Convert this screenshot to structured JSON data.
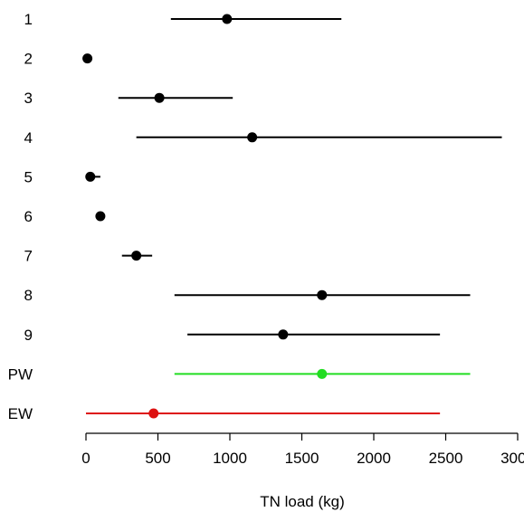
{
  "chart_data": {
    "type": "scatter",
    "title": "",
    "xlabel": "TN load (kg)",
    "ylabel": "",
    "xlim": [
      0,
      3000
    ],
    "x_ticks": [
      {
        "value": 0,
        "label": "0"
      },
      {
        "value": 500,
        "label": "500"
      },
      {
        "value": 1000,
        "label": "1000"
      },
      {
        "value": 1500,
        "label": "1500"
      },
      {
        "value": 2000,
        "label": "2000"
      },
      {
        "value": 2500,
        "label": "2500"
      },
      {
        "value": 3000,
        "label": "3000"
      }
    ],
    "grid": false,
    "legend": "none",
    "categories": [
      "1",
      "2",
      "3",
      "4",
      "5",
      "6",
      "7",
      "8",
      "9",
      "PW",
      "EW"
    ],
    "points": [
      {
        "category": "1",
        "value": 980,
        "low": 590,
        "high": 1775,
        "color": "#000000"
      },
      {
        "category": "2",
        "value": 10,
        "low": null,
        "high": null,
        "color": "#000000"
      },
      {
        "category": "3",
        "value": 510,
        "low": 225,
        "high": 1020,
        "color": "#000000"
      },
      {
        "category": "4",
        "value": 1155,
        "low": 350,
        "high": 2890,
        "color": "#000000"
      },
      {
        "category": "5",
        "value": 30,
        "low": 0,
        "high": 100,
        "color": "#000000"
      },
      {
        "category": "6",
        "value": 100,
        "low": null,
        "high": null,
        "color": "#000000"
      },
      {
        "category": "7",
        "value": 350,
        "low": 250,
        "high": 460,
        "color": "#000000"
      },
      {
        "category": "8",
        "value": 1640,
        "low": 615,
        "high": 2670,
        "color": "#000000"
      },
      {
        "category": "9",
        "value": 1370,
        "low": 705,
        "high": 2460,
        "color": "#000000"
      },
      {
        "category": "PW",
        "value": 1640,
        "low": 615,
        "high": 2670,
        "color": "#22dd22"
      },
      {
        "category": "EW",
        "value": 470,
        "low": 0,
        "high": 2460,
        "color": "#dd1111"
      }
    ]
  }
}
